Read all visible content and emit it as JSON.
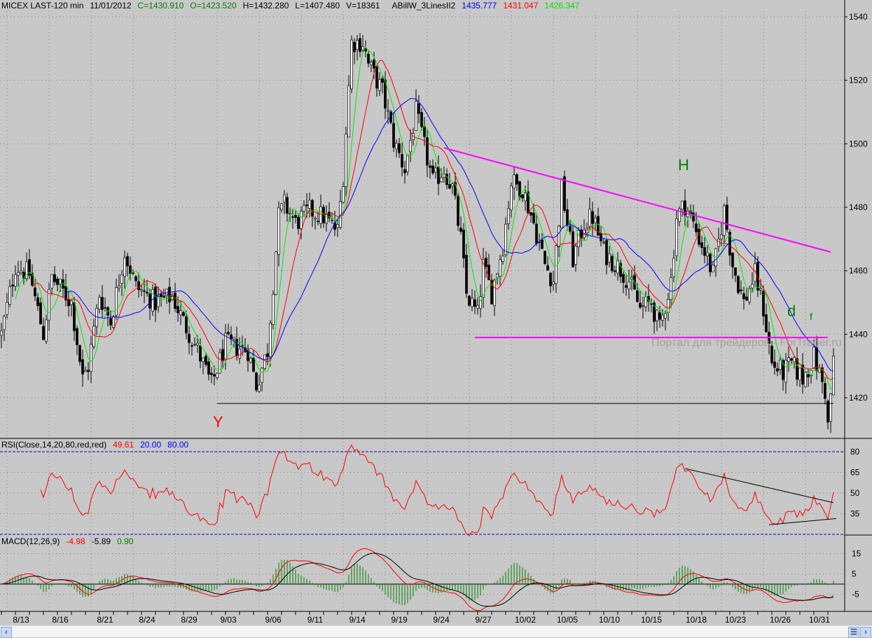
{
  "header": {
    "symbol": "MICEX LAST-120 min",
    "date": "11/01/2012",
    "close": "C=1430.910",
    "open": "O=1423.520",
    "high": "H=1432.280",
    "low": "L=1407.480",
    "volume": "V=18361",
    "indicator": "ABillW_3LinesII2",
    "line_blue": "1435.777",
    "line_red": "1431.047",
    "line_green": "1426.347"
  },
  "rsi_header": {
    "label": "RSI(Close,14,20,80,red,red)",
    "value": "49.61",
    "low": "20.00",
    "high": "80.00"
  },
  "macd_header": {
    "label": "MACD(12,26,9)",
    "macd": "-4.98",
    "signal": "-5.89",
    "hist": "0.90"
  },
  "colors": {
    "background": "#c8c8c8",
    "rsi": "#ff0000",
    "macd": "#ff0000",
    "signal": "#000000",
    "hist": "#008000",
    "trendline": "#ff00ff",
    "ma_fast": "#00ee00",
    "ma_mid": "#ff0000",
    "ma_slow": "#0000ff"
  },
  "scrollbar": {
    "left_icon": "chevron-left-icon",
    "right_icon": "chevron-right-icon"
  },
  "chart_data": [
    {
      "type": "candlestick",
      "title": "MICEX LAST-120 min",
      "bar_count": 298,
      "price_anchors": [
        [
          0,
          1440
        ],
        [
          5,
          1461.5
        ],
        [
          10,
          1459
        ],
        [
          15,
          1440
        ],
        [
          18,
          1458
        ],
        [
          25,
          1450
        ],
        [
          29,
          1426
        ],
        [
          31,
          1430
        ],
        [
          35,
          1452.6
        ],
        [
          39,
          1444
        ],
        [
          44,
          1466
        ],
        [
          48,
          1455
        ],
        [
          55,
          1450
        ],
        [
          61,
          1452
        ],
        [
          65,
          1444
        ],
        [
          70,
          1435
        ],
        [
          75,
          1424
        ],
        [
          80,
          1437
        ],
        [
          88,
          1435
        ],
        [
          91,
          1424
        ],
        [
          95,
          1435
        ],
        [
          99,
          1477
        ],
        [
          101,
          1481
        ],
        [
          105,
          1475
        ],
        [
          110,
          1479
        ],
        [
          115,
          1477
        ],
        [
          120,
          1472.5
        ],
        [
          122,
          1490
        ],
        [
          125,
          1532
        ],
        [
          129,
          1532
        ],
        [
          131,
          1525
        ],
        [
          136,
          1516.6
        ],
        [
          140,
          1501
        ],
        [
          144,
          1492
        ],
        [
          148,
          1510
        ],
        [
          151,
          1499
        ],
        [
          154,
          1488
        ],
        [
          158,
          1492
        ],
        [
          161,
          1486
        ],
        [
          164,
          1470
        ],
        [
          166,
          1452.6
        ],
        [
          170,
          1446
        ],
        [
          172,
          1461.5
        ],
        [
          175,
          1453
        ],
        [
          179,
          1468
        ],
        [
          182,
          1488
        ],
        [
          186,
          1486
        ],
        [
          190,
          1475
        ],
        [
          194,
          1462
        ],
        [
          197,
          1457
        ],
        [
          200,
          1486
        ],
        [
          204,
          1463.7
        ],
        [
          208,
          1475
        ],
        [
          211,
          1477
        ],
        [
          215,
          1466
        ],
        [
          220,
          1461.5
        ],
        [
          224,
          1457
        ],
        [
          228,
          1448
        ],
        [
          232,
          1450
        ],
        [
          235,
          1441.6
        ],
        [
          239,
          1457
        ],
        [
          241,
          1477
        ],
        [
          244,
          1481
        ],
        [
          248,
          1472.5
        ],
        [
          251,
          1466
        ],
        [
          254,
          1459
        ],
        [
          258,
          1479
        ],
        [
          261,
          1462
        ],
        [
          265,
          1450
        ],
        [
          269,
          1459
        ],
        [
          272,
          1448
        ],
        [
          275,
          1430.6
        ],
        [
          279,
          1428
        ],
        [
          282,
          1430.6
        ],
        [
          286,
          1426
        ],
        [
          290,
          1433
        ],
        [
          294,
          1422
        ],
        [
          295,
          1411
        ],
        [
          297,
          1431
        ]
      ],
      "moving_averages": [
        {
          "name": "fast",
          "period": 6,
          "color": "green"
        },
        {
          "name": "mid",
          "period": 12,
          "color": "red"
        },
        {
          "name": "slow",
          "period": 24,
          "color": "blue"
        }
      ],
      "ylim": [
        1405,
        1545
      ],
      "yticks": [
        1540,
        1520,
        1500,
        1480,
        1460,
        1440,
        1420
      ],
      "xticks": [
        {
          "bar": 7,
          "label": "8/13"
        },
        {
          "bar": 21,
          "label": "8/16"
        },
        {
          "bar": 37,
          "label": "8/21"
        },
        {
          "bar": 52,
          "label": "8/24"
        },
        {
          "bar": 67,
          "label": "8/29"
        },
        {
          "bar": 81,
          "label": "9/03"
        },
        {
          "bar": 97,
          "label": "9/06"
        },
        {
          "bar": 112,
          "label": "9/11"
        },
        {
          "bar": 127,
          "label": "9/14"
        },
        {
          "bar": 142,
          "label": "9/19"
        },
        {
          "bar": 157,
          "label": "9/24"
        },
        {
          "bar": 172,
          "label": "9/27"
        },
        {
          "bar": 187,
          "label": "10/02"
        },
        {
          "bar": 202,
          "label": "10/05"
        },
        {
          "bar": 217,
          "label": "10/10"
        },
        {
          "bar": 232,
          "label": "10/15"
        },
        {
          "bar": 248,
          "label": "10/18"
        },
        {
          "bar": 262,
          "label": "10/23"
        },
        {
          "bar": 278,
          "label": "10/26"
        },
        {
          "bar": 292,
          "label": "10/31"
        }
      ],
      "trendlines": [
        {
          "name": "resistance",
          "color": "magenta",
          "from": [
            158,
            1498.7
          ],
          "to": [
            296,
            1465.9
          ]
        },
        {
          "name": "support",
          "color": "magenta",
          "from": [
            169,
            1439
          ],
          "to": [
            295,
            1439
          ]
        },
        {
          "name": "low-line",
          "color": "black",
          "from": [
            77,
            1418.2
          ],
          "to": [
            297,
            1418.2
          ]
        }
      ],
      "annotations": [
        {
          "text": "Y",
          "bar": 77,
          "price": 1412,
          "color": "red"
        },
        {
          "text": "H",
          "bar": 243,
          "price": 1493,
          "color": "green"
        },
        {
          "text": "d",
          "bar": 282,
          "price": 1443,
          "color": "green"
        },
        {
          "text": "f",
          "bar": 290,
          "price": 1441,
          "color": "green"
        }
      ],
      "watermark": "Портал для трейдеров - ForTrader.ru"
    },
    {
      "type": "line",
      "title": "RSI(Close,14,20,80,red,red)",
      "period": 14,
      "levels": [
        20,
        80
      ],
      "yticks": [
        80,
        65,
        50,
        35
      ],
      "trendlines": [
        {
          "from": [
            244,
            67.8
          ],
          "to": [
            297,
            43
          ]
        },
        {
          "from": [
            274,
            27
          ],
          "to": [
            298,
            31.5
          ]
        }
      ]
    },
    {
      "type": "line",
      "title": "MACD(12,26,9)",
      "fast": 12,
      "slow": 26,
      "signal": 9,
      "yticks": [
        15,
        5,
        -5
      ]
    }
  ]
}
